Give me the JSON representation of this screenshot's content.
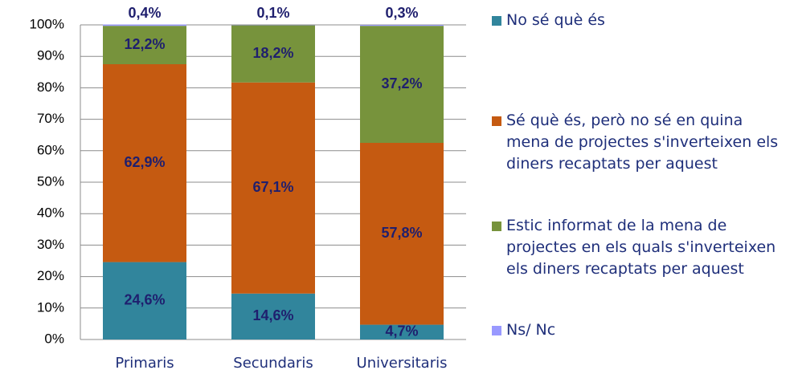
{
  "chart_data": {
    "type": "stacked_bar",
    "categories": [
      "Primaris",
      "Secundaris",
      "Universitaris"
    ],
    "series": [
      {
        "name": "No sé què és",
        "color": "#31859c",
        "values": [
          24.6,
          14.6,
          4.7
        ],
        "value_labels": [
          "24,6%",
          "14,6%",
          "4,7%"
        ]
      },
      {
        "name": "Sé què és, però no sé en quina mena de projectes s'inverteixen els diners recaptats per aquest",
        "color": "#c55a11",
        "values": [
          62.9,
          67.1,
          57.8
        ],
        "value_labels": [
          "62,9%",
          "67,1%",
          "57,8%"
        ]
      },
      {
        "name": "Estic informat de la mena de projectes en els quals s'inverteixen els diners recaptats per aquest",
        "color": "#77933c",
        "values": [
          12.2,
          18.2,
          37.2
        ],
        "value_labels": [
          "12,2%",
          "18,2%",
          "37,2%"
        ]
      },
      {
        "name": "Ns/ Nc",
        "color": "#9999ff",
        "values": [
          0.4,
          0.1,
          0.3
        ],
        "value_labels": [
          "0,4%",
          "0,1%",
          "0,3%"
        ]
      }
    ],
    "ylim": [
      0,
      100
    ],
    "yticks": [
      {
        "value": 0,
        "label": "0%"
      },
      {
        "value": 10,
        "label": "10%"
      },
      {
        "value": 20,
        "label": "20%"
      },
      {
        "value": 30,
        "label": "30%"
      },
      {
        "value": 40,
        "label": "40%"
      },
      {
        "value": 50,
        "label": "50%"
      },
      {
        "value": 60,
        "label": "60%"
      },
      {
        "value": 70,
        "label": "70%"
      },
      {
        "value": 80,
        "label": "80%"
      },
      {
        "value": 90,
        "label": "90%"
      },
      {
        "value": 100,
        "label": "100%"
      }
    ],
    "grid": true
  }
}
